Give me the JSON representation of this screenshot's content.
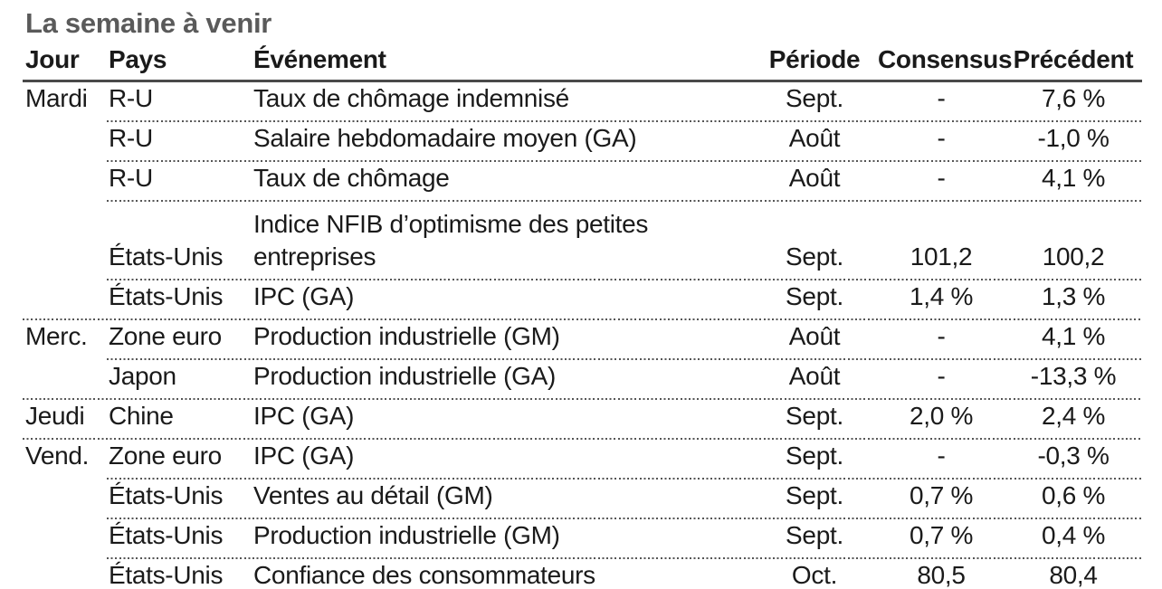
{
  "title": "La semaine à venir",
  "colors": {
    "title": "#5a5a5a",
    "text": "#1a1a1a",
    "header_rule": "#4a4a4a",
    "dotted_separator": "#555555",
    "background": "#ffffff"
  },
  "table": {
    "headers": {
      "day": "Jour",
      "country": "Pays",
      "event": "Événement",
      "period": "Période",
      "consensus": "Consensus",
      "previous": "Précédent"
    },
    "rows": [
      {
        "day": "Mardi",
        "country": "R-U",
        "event": "Taux de chômage indemnisé",
        "period": "Sept.",
        "consensus": "-",
        "previous": "7,6 %",
        "sep": "part",
        "tall": false
      },
      {
        "day": "",
        "country": "R-U",
        "event": "Salaire hebdomadaire moyen (GA)",
        "period": "Août",
        "consensus": "-",
        "previous": "-1,0 %",
        "sep": "part",
        "tall": false
      },
      {
        "day": "",
        "country": "R-U",
        "event": "Taux de chômage",
        "period": "Août",
        "consensus": "-",
        "previous": "4,1 %",
        "sep": "part",
        "tall": false
      },
      {
        "day": "",
        "country": "États-Unis",
        "event": "Indice NFIB d’optimisme des petites\nentreprises",
        "period": "Sept.",
        "consensus": "101,2",
        "previous": "100,2",
        "sep": "part",
        "tall": true
      },
      {
        "day": "",
        "country": "États-Unis",
        "event": "IPC (GA)",
        "period": "Sept.",
        "consensus": "1,4 %",
        "previous": "1,3 %",
        "sep": "full",
        "tall": false
      },
      {
        "day": "Merc.",
        "country": "Zone euro",
        "event": "Production industrielle (GM)",
        "period": "Août",
        "consensus": "-",
        "previous": "4,1 %",
        "sep": "part",
        "tall": false
      },
      {
        "day": "",
        "country": "Japon",
        "event": "Production industrielle (GA)",
        "period": "Août",
        "consensus": "-",
        "previous": "-13,3 %",
        "sep": "full",
        "tall": false
      },
      {
        "day": "Jeudi",
        "country": "Chine",
        "event": "IPC (GA)",
        "period": "Sept.",
        "consensus": "2,0 %",
        "previous": "2,4 %",
        "sep": "full",
        "tall": false
      },
      {
        "day": "Vend.",
        "country": "Zone euro",
        "event": "IPC (GA)",
        "period": "Sept.",
        "consensus": "-",
        "previous": "-0,3 %",
        "sep": "part",
        "tall": false
      },
      {
        "day": "",
        "country": "États-Unis",
        "event": "Ventes au détail (GM)",
        "period": "Sept.",
        "consensus": "0,7 %",
        "previous": "0,6 %",
        "sep": "part",
        "tall": false
      },
      {
        "day": "",
        "country": "États-Unis",
        "event": "Production industrielle (GM)",
        "period": "Sept.",
        "consensus": "0,7 %",
        "previous": "0,4 %",
        "sep": "part",
        "tall": false
      },
      {
        "day": "",
        "country": "États-Unis",
        "event": "Confiance des consommateurs",
        "period": "Oct.",
        "consensus": "80,5",
        "previous": "80,4",
        "sep": "full",
        "tall": false
      }
    ]
  }
}
